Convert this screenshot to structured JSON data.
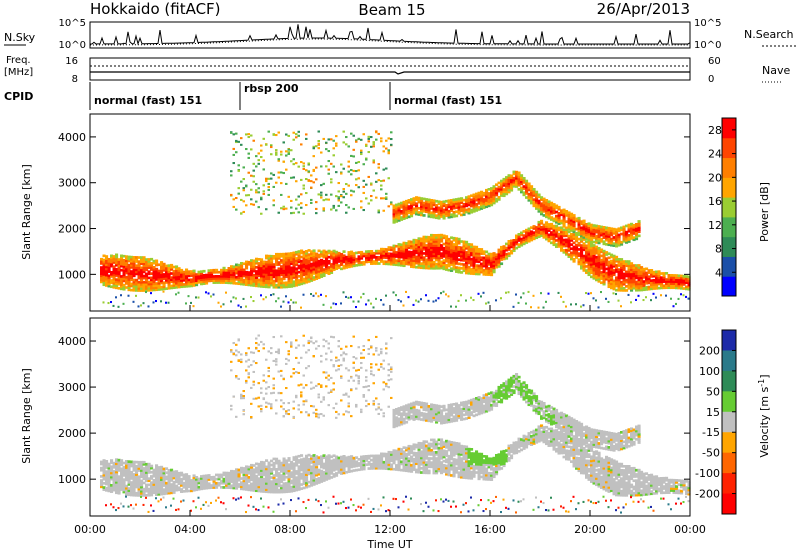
{
  "header": {
    "title_left": "Hokkaido (fitACF)",
    "title_center": "Beam 15",
    "title_right": "26/Apr/2013"
  },
  "aux_panels": {
    "sky_label": "N.Sky",
    "search_label": "N.Search",
    "sky_ticks": [
      "10^5",
      "10^0"
    ],
    "search_ticks": [
      "10^5",
      "10^0"
    ],
    "freq_label_1": "Freq.",
    "freq_label_2": "[MHz]",
    "freq_ticks": [
      "16",
      "8"
    ],
    "nave_label": "Nave",
    "nave_ticks": [
      "60",
      "0"
    ],
    "cpid_label": "CPID",
    "cpid_segments": [
      {
        "label": "normal (fast) 151",
        "start_hour": 0
      },
      {
        "label": "rbsp 200",
        "start_hour": 6
      },
      {
        "label": "normal (fast) 151",
        "start_hour": 12
      }
    ]
  },
  "chart_data": [
    {
      "type": "heatmap",
      "title": "",
      "ylabel": "Slant Range [km]",
      "xlabel": "",
      "xlim": [
        "00:00",
        "24:00"
      ],
      "ylim": [
        200,
        4500
      ],
      "yticks": [
        1000,
        2000,
        3000,
        4000
      ],
      "colorbar": {
        "label": "Power [dB]",
        "ticks": [
          4,
          8,
          12,
          16,
          20,
          24,
          28
        ],
        "range": [
          0,
          30
        ],
        "colors": [
          "#0000ff",
          "#1a4fa8",
          "#2e8b57",
          "#4caf50",
          "#9acd32",
          "#ffa500",
          "#ff7f00",
          "#ff4500",
          "#ff0000"
        ]
      },
      "echo_bands": [
        {
          "name": "main_low",
          "t": [
            0,
            2,
            4,
            6,
            8,
            10,
            12,
            14,
            15,
            16,
            17,
            18,
            19,
            20,
            21,
            22,
            24
          ],
          "range_km": [
            1100,
            1000,
            900,
            1000,
            1100,
            1300,
            1400,
            1500,
            1350,
            1200,
            1700,
            2000,
            1700,
            1300,
            1000,
            900,
            800
          ],
          "power": 26
        },
        {
          "name": "upper_arc",
          "t": [
            12,
            13,
            14,
            15,
            16,
            16.5,
            17,
            17.5,
            18,
            19,
            20,
            21,
            22
          ],
          "range_km": [
            2300,
            2500,
            2400,
            2500,
            2700,
            2900,
            3100,
            2800,
            2500,
            2200,
            1900,
            1800,
            2000
          ],
          "power": 24
        }
      ]
    },
    {
      "type": "heatmap",
      "title": "",
      "ylabel": "Slant Range [km]",
      "xlabel": "Time UT",
      "xlim": [
        "00:00",
        "24:00"
      ],
      "xticks": [
        "00:00",
        "04:00",
        "08:00",
        "12:00",
        "16:00",
        "20:00",
        "00:00"
      ],
      "ylim": [
        200,
        4500
      ],
      "yticks": [
        1000,
        2000,
        3000,
        4000
      ],
      "colorbar": {
        "label": "Velocity [m s^-1]",
        "ticks": [
          200,
          100,
          50,
          15,
          -15,
          -50,
          -100,
          -200
        ],
        "colors": [
          "#1c2aa8",
          "#2a7a8a",
          "#2e8b57",
          "#66cc33",
          "#c0c0c0",
          "#ffa500",
          "#ff6600",
          "#ff2200",
          "#ff0000"
        ]
      }
    }
  ]
}
